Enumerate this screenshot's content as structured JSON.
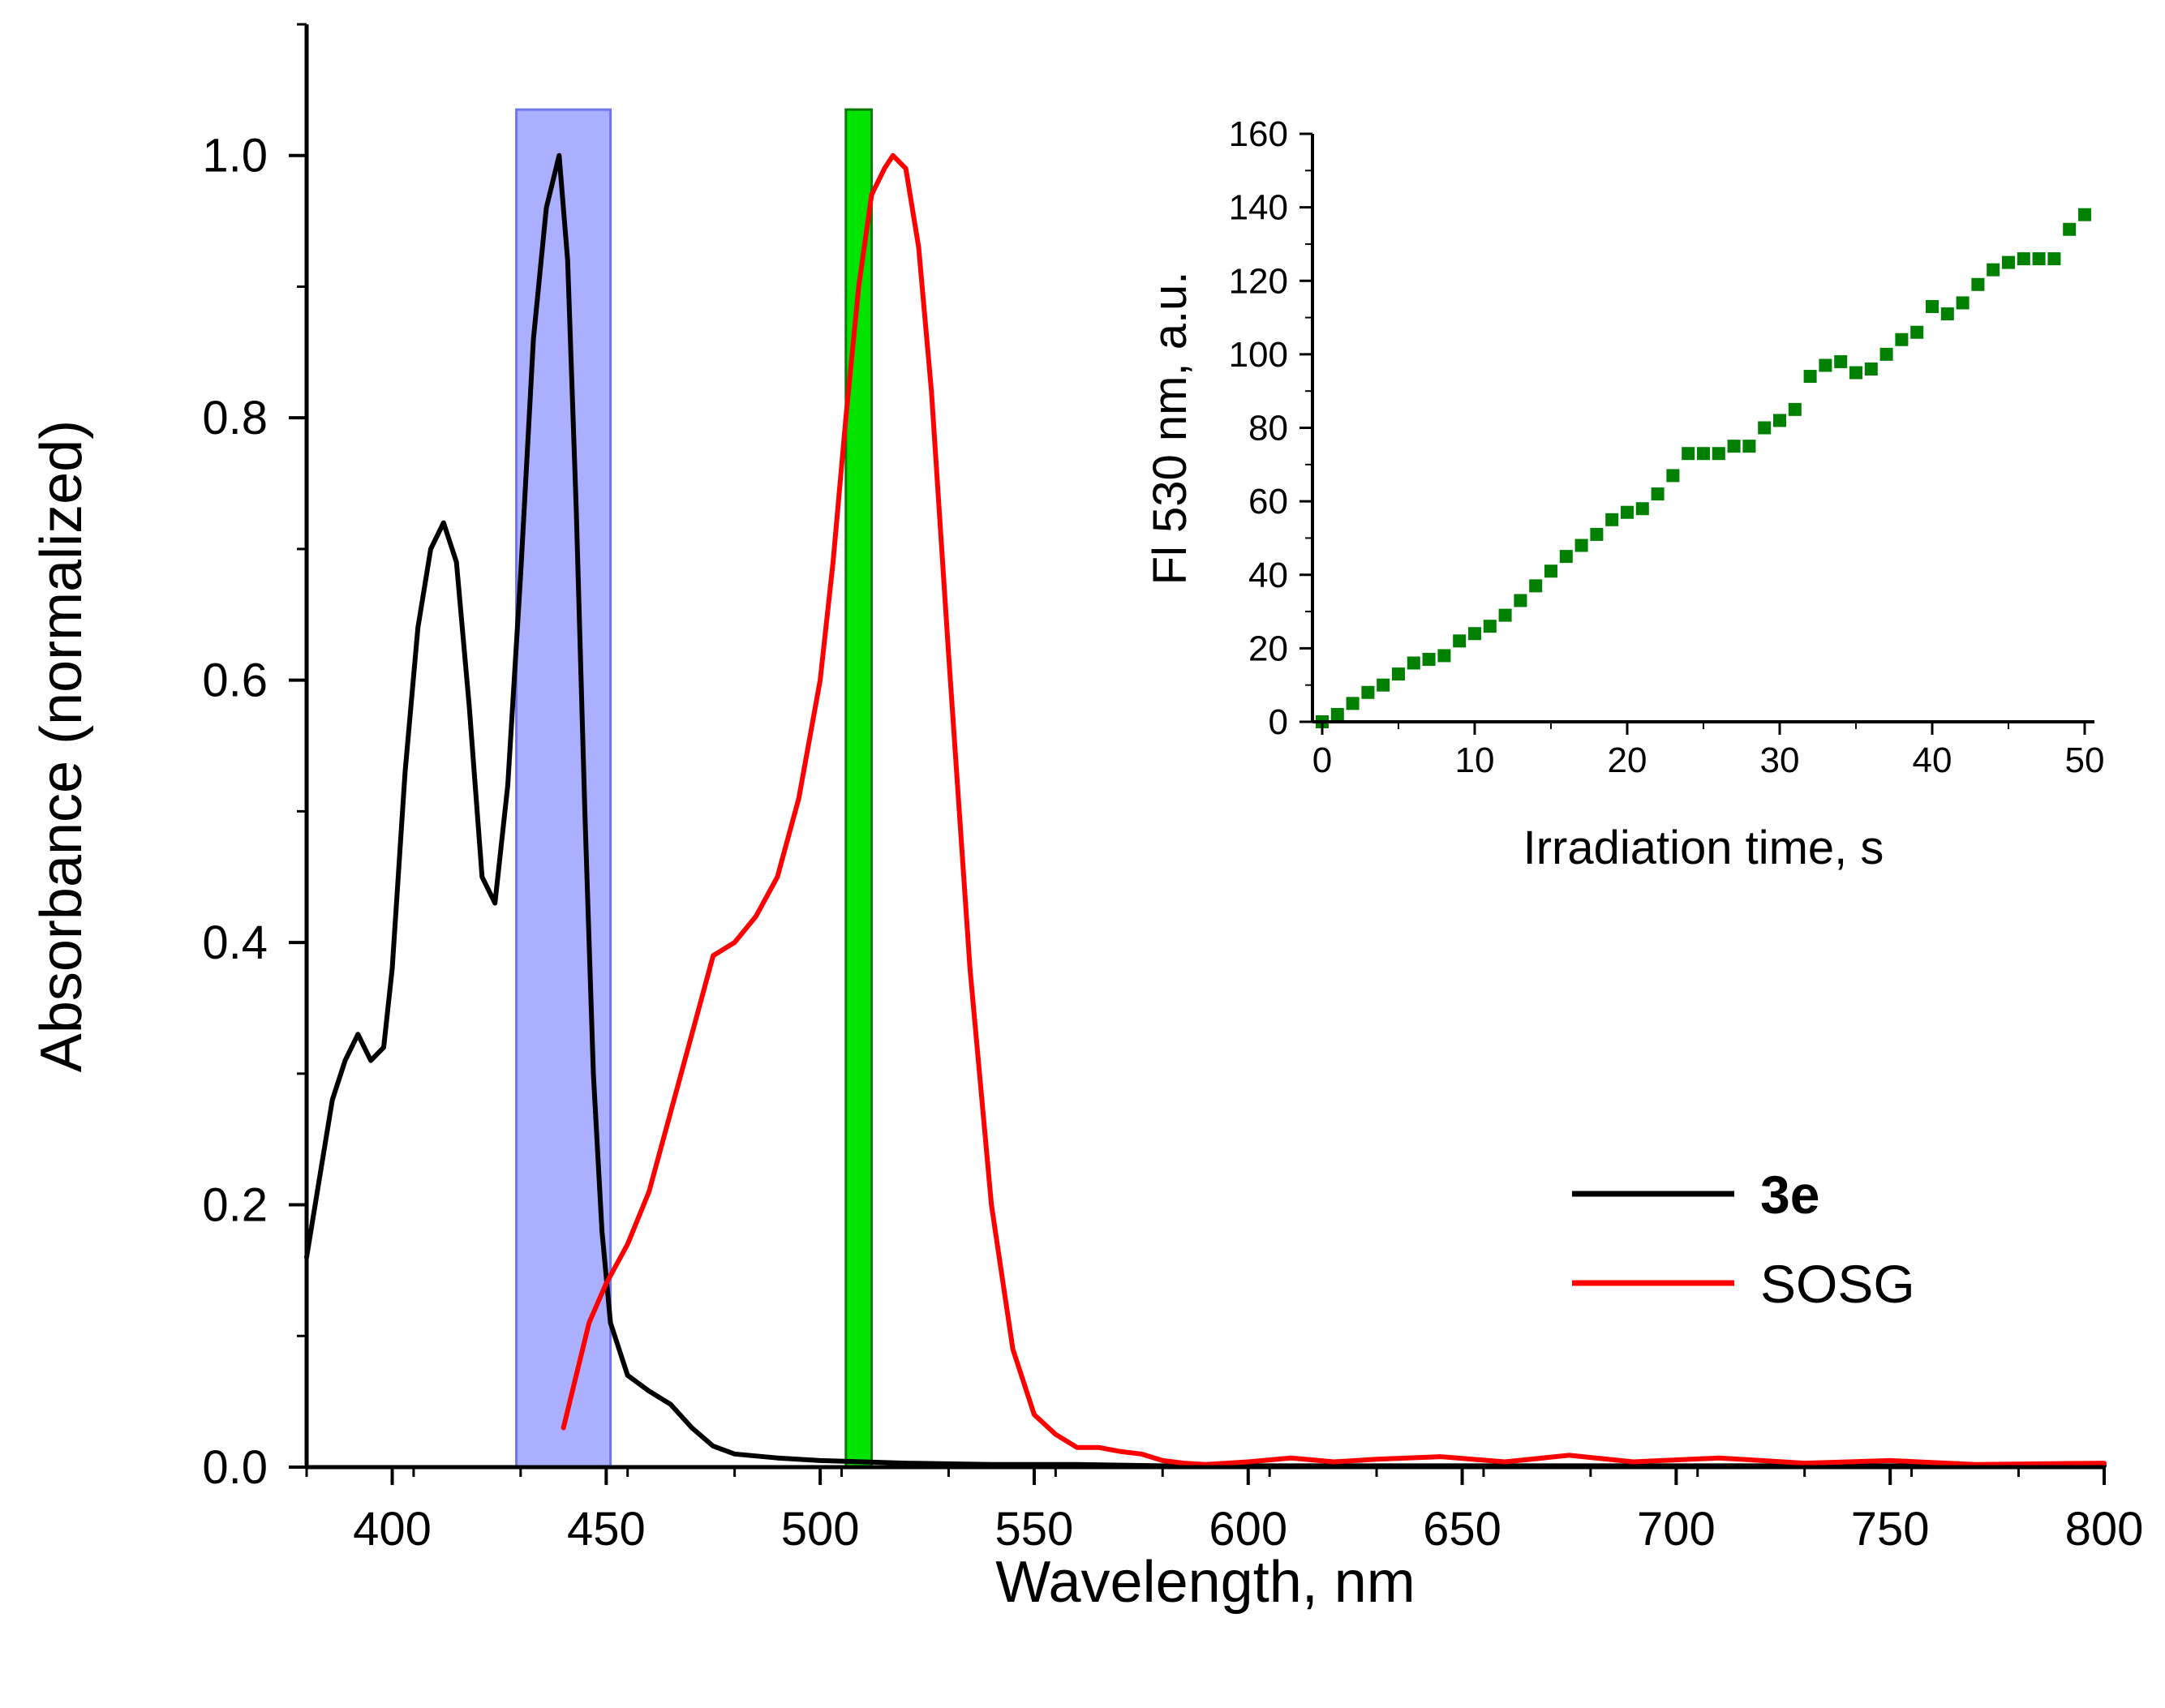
{
  "chart_data": [
    {
      "id": "main",
      "type": "line",
      "xlabel": "Wavelength, nm",
      "ylabel": "Absorbance (normalized)",
      "xlim": [
        380,
        800
      ],
      "ylim": [
        0,
        1.1
      ],
      "xticks": [
        400,
        450,
        500,
        550,
        600,
        650,
        700,
        750,
        800
      ],
      "xtick_labels": [
        "400",
        "450",
        "500",
        "550",
        "600",
        "650",
        "700",
        "750",
        "800"
      ],
      "yticks": [
        0.0,
        0.2,
        0.4,
        0.6,
        0.8,
        1.0
      ],
      "ytick_labels": [
        "0.0",
        "0.2",
        "0.4",
        "0.6",
        "0.8",
        "1.0"
      ],
      "grid": false,
      "legend_position": "bottom-right",
      "highlight_bands": [
        {
          "name": "blue-excitation-band",
          "x": [
            429,
            451
          ],
          "y": [
            0,
            1.035
          ],
          "color": "#aab0ff",
          "edge": "#6f77e6"
        },
        {
          "name": "green-detection-band",
          "x": [
            506,
            512
          ],
          "y": [
            0,
            1.035
          ],
          "color": "#00e400",
          "edge": "#007a00"
        }
      ],
      "series": [
        {
          "name": "3e",
          "bold": true,
          "color": "#000000",
          "x": [
            380,
            383,
            386,
            389,
            392,
            395,
            398,
            400,
            403,
            406,
            409,
            412,
            415,
            418,
            421,
            424,
            427,
            430,
            433,
            436,
            439,
            441,
            443,
            445,
            447,
            449,
            451,
            455,
            460,
            465,
            470,
            475,
            480,
            490,
            500,
            510,
            520,
            540,
            560,
            580,
            600,
            650,
            700,
            750,
            800
          ],
          "values": [
            0.16,
            0.22,
            0.28,
            0.31,
            0.33,
            0.31,
            0.32,
            0.38,
            0.53,
            0.64,
            0.7,
            0.72,
            0.69,
            0.58,
            0.45,
            0.43,
            0.52,
            0.68,
            0.86,
            0.96,
            1.0,
            0.92,
            0.73,
            0.5,
            0.3,
            0.18,
            0.11,
            0.07,
            0.058,
            0.048,
            0.03,
            0.016,
            0.01,
            0.007,
            0.005,
            0.004,
            0.003,
            0.002,
            0.002,
            0.001,
            0.001,
            0.001,
            0.001,
            0.001,
            0.001
          ]
        },
        {
          "name": "SOSG",
          "bold": false,
          "color": "#ff0000",
          "x": [
            440,
            443,
            446,
            450,
            455,
            460,
            465,
            470,
            475,
            480,
            485,
            490,
            495,
            500,
            503,
            506,
            509,
            512,
            515,
            517,
            520,
            523,
            526,
            530,
            535,
            540,
            545,
            550,
            555,
            560,
            565,
            570,
            575,
            580,
            585,
            590,
            600,
            610,
            620,
            630,
            645,
            660,
            675,
            690,
            710,
            730,
            750,
            770,
            800
          ],
          "values": [
            0.03,
            0.07,
            0.11,
            0.14,
            0.17,
            0.21,
            0.27,
            0.33,
            0.39,
            0.4,
            0.42,
            0.45,
            0.51,
            0.6,
            0.69,
            0.8,
            0.9,
            0.97,
            0.99,
            1.0,
            0.99,
            0.93,
            0.82,
            0.62,
            0.38,
            0.2,
            0.09,
            0.04,
            0.025,
            0.015,
            0.015,
            0.012,
            0.01,
            0.005,
            0.003,
            0.002,
            0.004,
            0.007,
            0.004,
            0.006,
            0.008,
            0.004,
            0.009,
            0.004,
            0.007,
            0.003,
            0.005,
            0.002,
            0.003
          ]
        }
      ]
    },
    {
      "id": "inset",
      "type": "scatter",
      "xlabel": "Irradiation time, s",
      "ylabel": "Fl 530 nm, a.u.",
      "xlim": [
        0,
        50
      ],
      "ylim": [
        0,
        160
      ],
      "xticks": [
        0,
        10,
        20,
        30,
        40,
        50
      ],
      "xtick_labels": [
        "0",
        "10",
        "20",
        "30",
        "40",
        "50"
      ],
      "yticks": [
        0,
        20,
        40,
        60,
        80,
        100,
        120,
        140,
        160
      ],
      "ytick_labels": [
        "0",
        "20",
        "40",
        "60",
        "80",
        "100",
        "120",
        "140",
        "160"
      ],
      "grid": false,
      "marker": "square",
      "series": [
        {
          "name": "Fl 530 nm",
          "color": "#008000",
          "x": [
            0,
            1,
            2,
            3,
            4,
            5,
            6,
            7,
            8,
            9,
            10,
            11,
            12,
            13,
            14,
            15,
            16,
            17,
            18,
            19,
            20,
            21,
            22,
            23,
            24,
            25,
            26,
            27,
            28,
            29,
            30,
            31,
            32,
            33,
            34,
            35,
            36,
            37,
            38,
            39,
            40,
            41,
            42,
            43,
            44,
            45,
            46,
            47,
            48,
            49,
            50
          ],
          "values": [
            0,
            2,
            5,
            8,
            10,
            13,
            16,
            17,
            18,
            22,
            24,
            26,
            29,
            33,
            37,
            41,
            45,
            48,
            51,
            55,
            57,
            58,
            62,
            67,
            73,
            73,
            73,
            75,
            75,
            80,
            82,
            85,
            94,
            97,
            98,
            95,
            96,
            100,
            104,
            106,
            113,
            111,
            114,
            119,
            123,
            125,
            126,
            126,
            126,
            134,
            138
          ]
        }
      ]
    }
  ]
}
